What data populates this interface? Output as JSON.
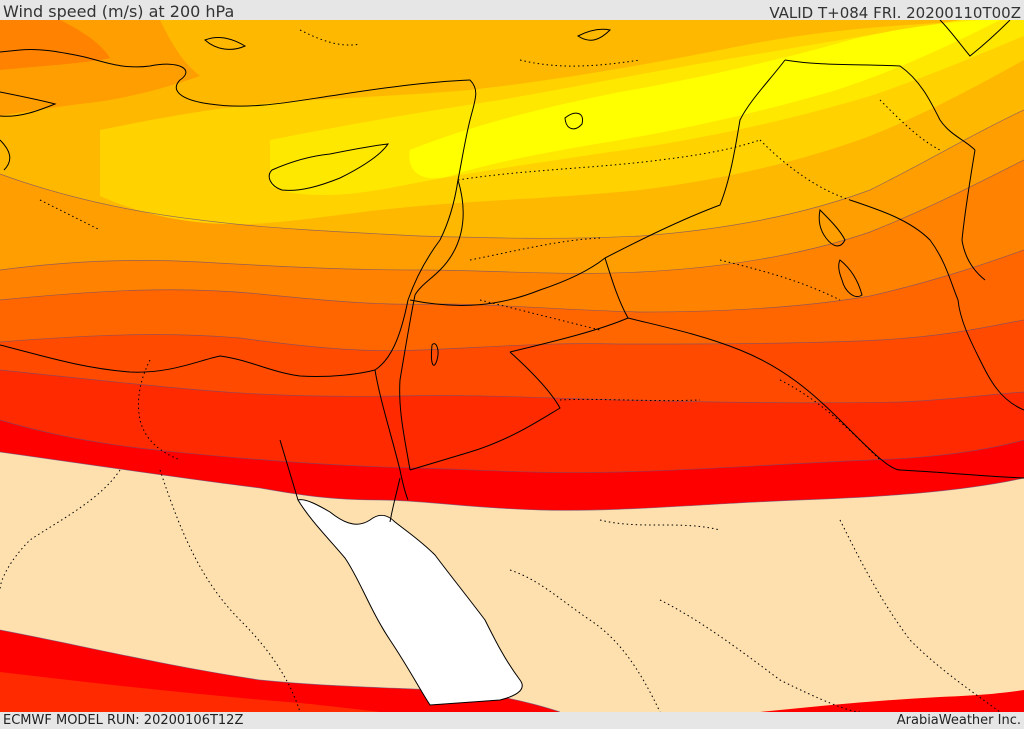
{
  "header": {
    "title": "Wind speed (m/s) at 200 hPa",
    "valid": "VALID T+084 FRI. 20200110T00Z"
  },
  "footer": {
    "model_run": "ECMWF MODEL RUN: 20200106T12Z",
    "credit": "ArabiaWeather Inc."
  },
  "map": {
    "parameter": "wind speed",
    "level": "200 hPa",
    "colors": {
      "band_1": "#fde0ae",
      "band_2": "#ff0000",
      "band_3": "#ff2a00",
      "band_4": "#ff4a00",
      "band_5": "#ff6600",
      "band_6": "#ff8200",
      "band_7": "#ff9e00",
      "band_8": "#ffb800",
      "band_9": "#ffd200",
      "band_10": "#ffe800",
      "band_11": "#ffff00",
      "sea": "#ffffff"
    }
  }
}
